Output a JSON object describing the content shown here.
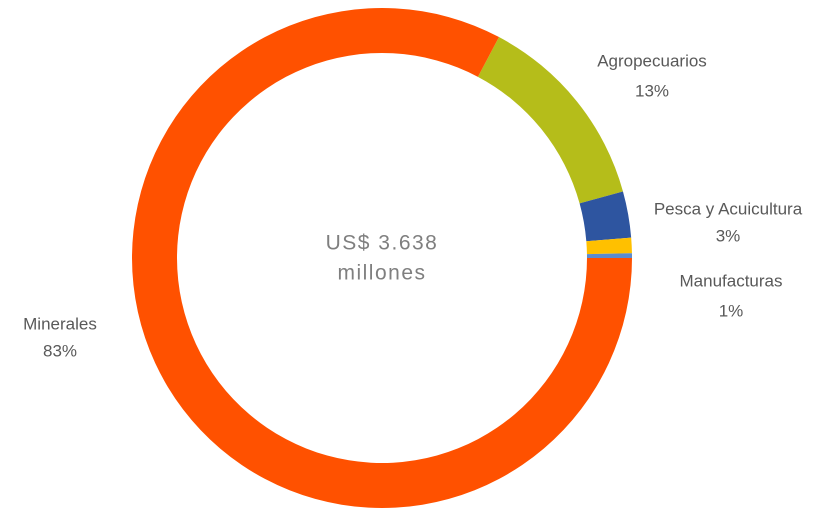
{
  "chart_data": {
    "type": "donut",
    "center_text": [
      "US$ 3.638",
      "millones"
    ],
    "categories": [
      "Agropecuarios",
      "Pesca y Acuicultura",
      "Manufacturas",
      null,
      "Minerales"
    ],
    "values": [
      13,
      3,
      1,
      0.3,
      83
    ],
    "value_labels": [
      "13%",
      "3%",
      "1%",
      null,
      "83%"
    ],
    "colors": [
      "#b5bd1a",
      "#2e55a0",
      "#ffc000",
      "#5b8bd0",
      "#ff5100"
    ]
  }
}
